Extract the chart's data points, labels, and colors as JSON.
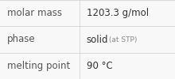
{
  "rows": [
    {
      "label": "molar mass",
      "value": "1203.3 g/mol",
      "suffix": null
    },
    {
      "label": "phase",
      "value": "solid",
      "suffix": " (at STP)"
    },
    {
      "label": "melting point",
      "value": "90 °C",
      "suffix": null
    }
  ],
  "col_split": 0.455,
  "background_color": "#f8f8f8",
  "border_color": "#cccccc",
  "label_fontsize": 8.5,
  "value_fontsize": 8.5,
  "suffix_fontsize": 6.5,
  "label_color": "#555555",
  "value_color": "#333333",
  "suffix_color": "#888888",
  "font_family": "DejaVu Sans"
}
